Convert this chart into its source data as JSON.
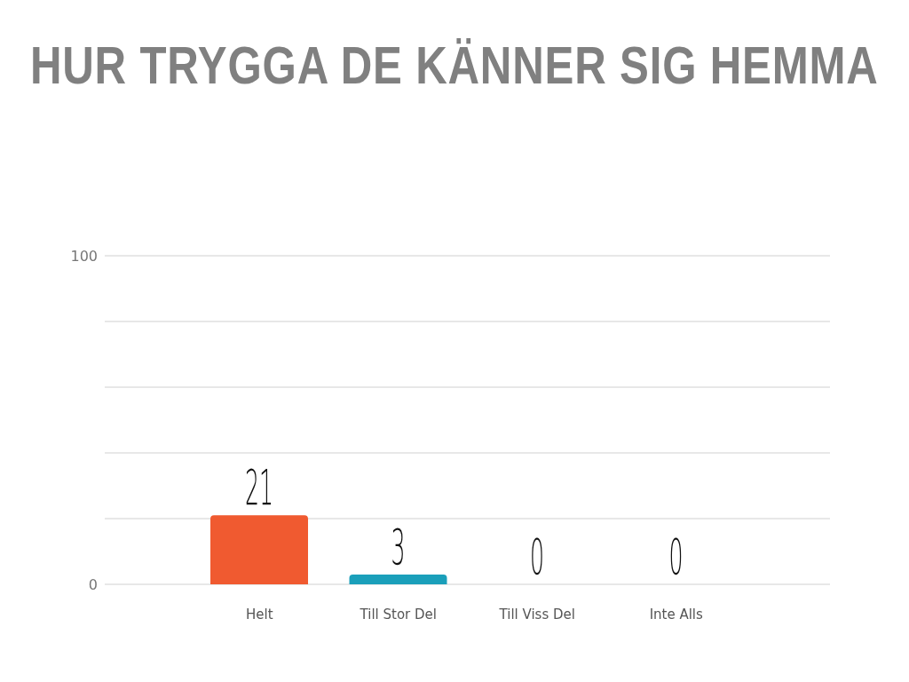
{
  "chart_data": {
    "type": "bar",
    "title": "HUR TRYGGA DE KÄNNER SIG HEMMA",
    "categories": [
      "Helt",
      "Till Stor Del",
      "Till Viss Del",
      "Inte Alls"
    ],
    "values": [
      21,
      3,
      0,
      0
    ],
    "colors": [
      "#f05a30",
      "#1a9fba",
      null,
      null
    ],
    "ylim": [
      0,
      100
    ],
    "yticks": [
      0,
      {
        "value": 20,
        "label": null
      },
      {
        "value": 40,
        "label": null
      },
      {
        "value": 60,
        "label": null
      },
      {
        "value": 80,
        "label": null
      },
      100
    ],
    "grid": "y",
    "data_labels": true
  }
}
